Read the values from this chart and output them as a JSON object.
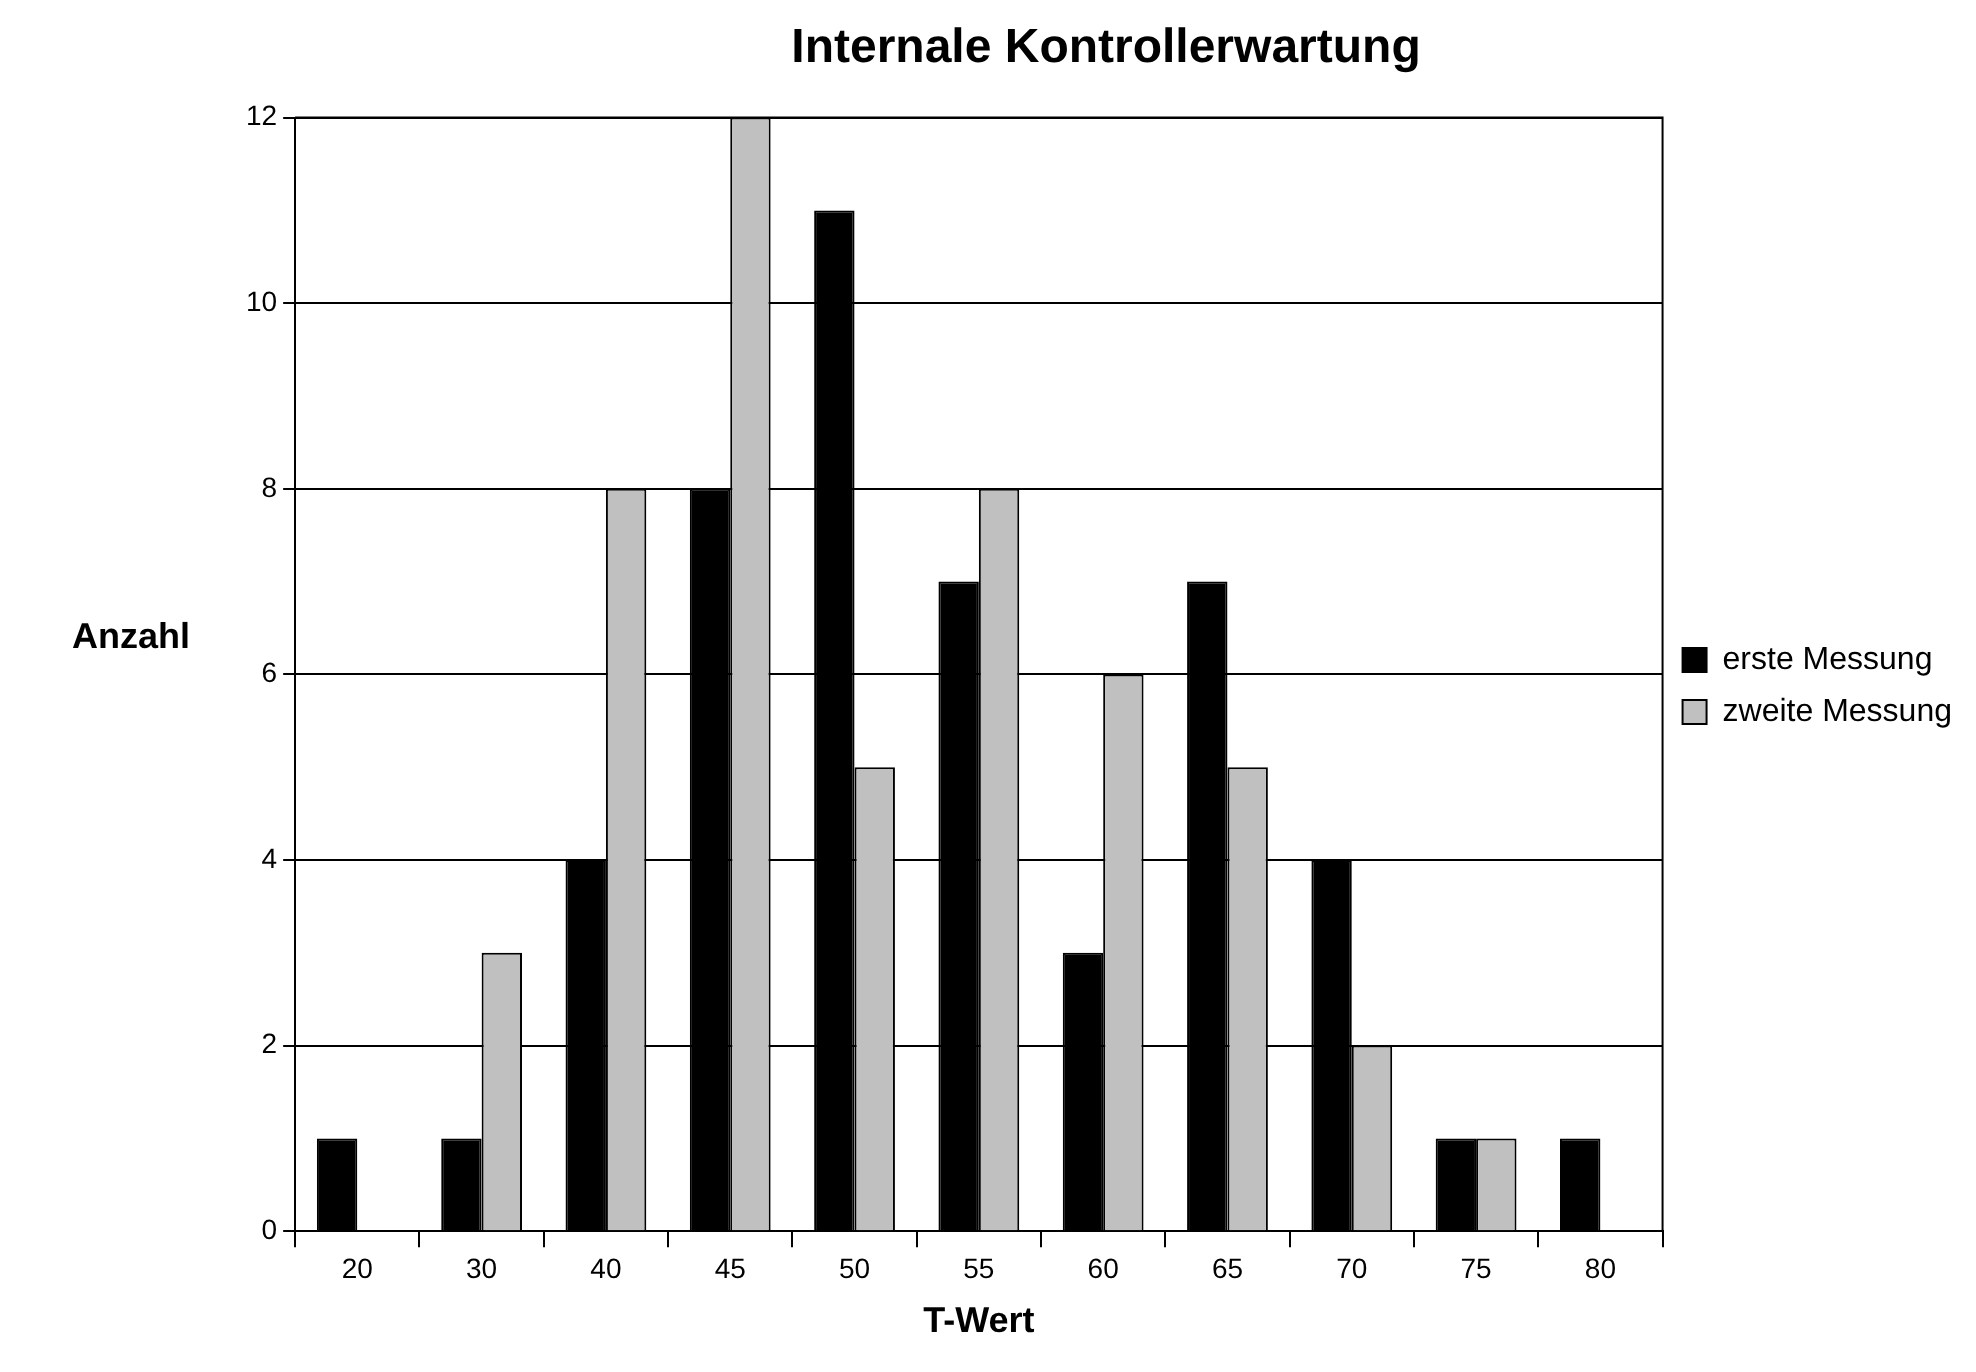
{
  "chart_data": {
    "type": "bar",
    "title": "Internale Kontrollerwartung",
    "xlabel": "T-Wert",
    "ylabel": "Anzahl",
    "categories": [
      "20",
      "30",
      "40",
      "45",
      "50",
      "55",
      "60",
      "65",
      "70",
      "75",
      "80"
    ],
    "series": [
      {
        "name": "erste Messung",
        "color": "#000000",
        "values": [
          1,
          1,
          4,
          8,
          11,
          7,
          3,
          7,
          4,
          1,
          1
        ]
      },
      {
        "name": "zweite Messung",
        "color": "#c0c0c0",
        "values": [
          0,
          3,
          8,
          12,
          5,
          8,
          6,
          5,
          2,
          1,
          0
        ]
      }
    ],
    "ylim": [
      0,
      12
    ],
    "yticks": [
      0,
      2,
      4,
      6,
      8,
      10,
      12
    ],
    "grid": "y",
    "legend": "right"
  }
}
